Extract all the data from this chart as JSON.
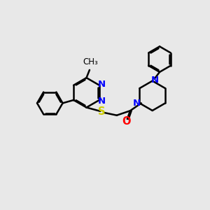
{
  "background_color": "#e8e8e8",
  "bond_color": "#000000",
  "N_color": "#0000ff",
  "S_color": "#cccc00",
  "O_color": "#ff0000",
  "line_width": 1.8,
  "figsize": [
    3.0,
    3.0
  ],
  "dpi": 100,
  "xlim": [
    0,
    10
  ],
  "ylim": [
    1,
    9
  ]
}
